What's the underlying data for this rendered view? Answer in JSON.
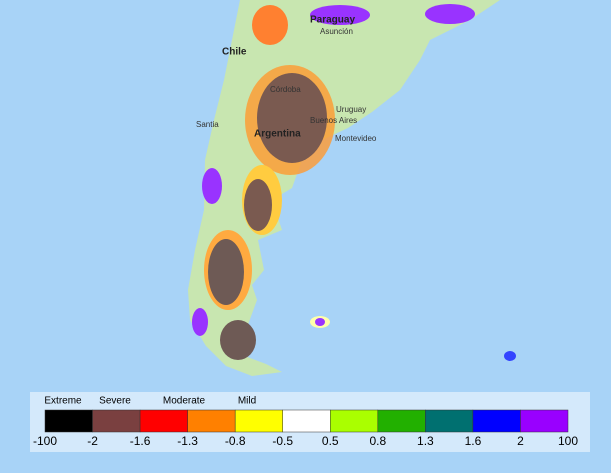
{
  "map_labels": [
    "Paraguay",
    "Asunción",
    "Chile",
    "Córdoba",
    "Uruguay",
    "Santia",
    "Buenos Aires",
    "Argentina",
    "Montevideo"
  ],
  "legend": {
    "classes": [
      "Extreme",
      "Severe",
      "Moderate",
      "Mild"
    ],
    "colors": [
      "#000000",
      "#7a4040",
      "#ff0000",
      "#ff8000",
      "#ffff00",
      "#ffffff",
      "#aaff00",
      "#22b000",
      "#007070",
      "#0000ff",
      "#9900ff"
    ],
    "ticks": [
      -100,
      -2,
      -1.6,
      -1.3,
      -0.8,
      -0.5,
      0.5,
      0.8,
      1.3,
      1.6,
      2,
      100
    ]
  }
}
